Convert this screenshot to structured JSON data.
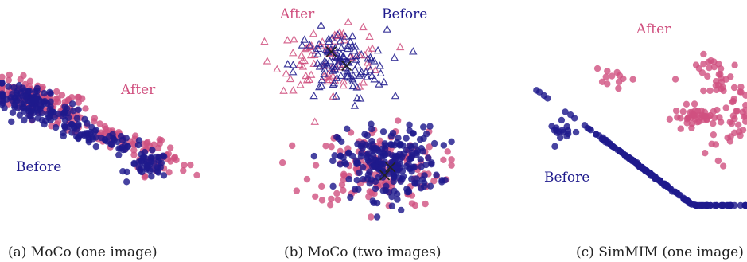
{
  "colors": {
    "after": "#d0507f",
    "before": "#1e1a8c"
  },
  "chart_data": [
    {
      "type": "scatter",
      "caption": "(a) MoCo (one image)",
      "after_label": "After",
      "before_label": "Before",
      "xlim": [
        0,
        10
      ],
      "ylim": [
        0,
        10
      ],
      "series": [
        {
          "role": "after",
          "marker": "circle",
          "clusters": [
            {
              "cx": 2.0,
              "cy": 6.7,
              "sx": 1.3,
              "sy": 0.55,
              "n": 110,
              "rho": -0.3
            },
            {
              "cx": 5.4,
              "cy": 4.6,
              "sx": 1.8,
              "sy": 0.5,
              "n": 70,
              "rho": -0.4
            },
            {
              "cx": 8.0,
              "cy": 2.8,
              "sx": 0.7,
              "sy": 0.4,
              "n": 35,
              "rho": 0
            }
          ]
        },
        {
          "role": "before",
          "marker": "circle",
          "clusters": [
            {
              "cx": 1.6,
              "cy": 6.5,
              "sx": 1.0,
              "sy": 0.5,
              "n": 120,
              "rho": -0.4
            },
            {
              "cx": 4.6,
              "cy": 4.5,
              "sx": 1.5,
              "sy": 0.45,
              "n": 70,
              "rho": -0.4
            },
            {
              "cx": 7.5,
              "cy": 2.6,
              "sx": 0.5,
              "sy": 0.4,
              "n": 45,
              "rho": 0
            }
          ]
        }
      ]
    },
    {
      "type": "scatter",
      "caption": "(b) MoCo (two images)",
      "after_label": "After",
      "before_label": "Before",
      "xlim": [
        0,
        10
      ],
      "ylim": [
        0,
        10
      ],
      "series": [
        {
          "role": "after",
          "marker": "triangle-open",
          "clusters": [
            {
              "cx": 3.6,
              "cy": 8.1,
              "sx": 1.5,
              "sy": 0.8,
              "n": 75,
              "rho": 0
            }
          ]
        },
        {
          "role": "before",
          "marker": "triangle-open",
          "clusters": [
            {
              "cx": 4.1,
              "cy": 7.7,
              "sx": 1.2,
              "sy": 0.9,
              "n": 110,
              "rho": 0
            }
          ]
        },
        {
          "role": "after",
          "marker": "circle",
          "clusters": [
            {
              "cx": 6.0,
              "cy": 2.6,
              "sx": 1.7,
              "sy": 1.0,
              "n": 150,
              "rho": 0
            }
          ]
        },
        {
          "role": "before",
          "marker": "circle",
          "clusters": [
            {
              "cx": 6.6,
              "cy": 2.8,
              "sx": 1.3,
              "sy": 0.9,
              "n": 220,
              "rho": 0
            }
          ]
        }
      ],
      "centroids": [
        {
          "x": 3.6,
          "y": 8.4
        },
        {
          "x": 4.4,
          "y": 7.7
        },
        {
          "x": 6.7,
          "y": 2.6
        },
        {
          "x": 6.4,
          "y": 2.2
        }
      ]
    },
    {
      "type": "scatter",
      "caption": "(c) SimMIM (one image)",
      "after_label": "After",
      "before_label": "Before",
      "xlim": [
        0,
        10
      ],
      "ylim": [
        0,
        10
      ],
      "series": [
        {
          "role": "after",
          "marker": "circle",
          "clusters": [
            {
              "cx": 3.8,
              "cy": 7.7,
              "sx": 0.5,
              "sy": 0.35,
              "n": 12,
              "rho": 0
            },
            {
              "cx": 7.7,
              "cy": 5.5,
              "sx": 0.6,
              "sy": 0.25,
              "n": 40,
              "rho": 0
            },
            {
              "cx": 8.7,
              "cy": 7.7,
              "sx": 0.55,
              "sy": 0.8,
              "n": 40,
              "rho": 0
            },
            {
              "cx": 9.5,
              "cy": 5.3,
              "sx": 0.35,
              "sy": 0.6,
              "n": 22,
              "rho": 0
            },
            {
              "cx": 8.5,
              "cy": 3.5,
              "sx": 0.4,
              "sy": 0.6,
              "n": 6,
              "rho": 0
            }
          ]
        },
        {
          "role": "before",
          "marker": "circle",
          "clusters": [
            {
              "cx": 1.4,
              "cy": 4.6,
              "sx": 0.3,
              "sy": 0.3,
              "n": 16,
              "rho": 0
            },
            {
              "cx": 5.7,
              "cy": 1.8,
              "sx": 2.1,
              "sy": 0.14,
              "n": 180,
              "rho": -0.97
            }
          ]
        }
      ]
    }
  ]
}
